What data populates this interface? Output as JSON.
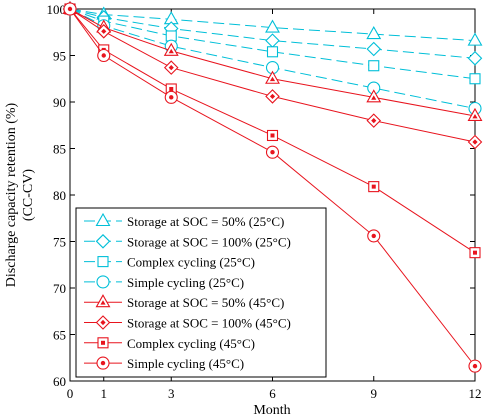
{
  "chart_data": {
    "type": "line",
    "title": "",
    "xlabel": "Month",
    "ylabel": "Discharge capacity retention (%)",
    "ylabel2": "(CC-CV)",
    "xlim": [
      0,
      12
    ],
    "ylim": [
      60,
      100
    ],
    "xticks": [
      0,
      1,
      3,
      6,
      9,
      12
    ],
    "yticks": [
      60,
      65,
      70,
      75,
      80,
      85,
      90,
      95,
      100
    ],
    "grid": false,
    "legend_position": "bottom-left",
    "x": [
      0,
      1,
      3,
      6,
      9,
      12
    ],
    "series": [
      {
        "name": "Storage at SOC = 50% (25°C)",
        "marker": "triangle",
        "filled": false,
        "color": "#00bfd8",
        "dash": true,
        "values": [
          100,
          99.4,
          98.9,
          98.0,
          97.3,
          96.6
        ]
      },
      {
        "name": "Storage at SOC = 100% (25°C)",
        "marker": "diamond",
        "filled": false,
        "color": "#00bfd8",
        "dash": true,
        "values": [
          100,
          99.1,
          97.9,
          96.6,
          95.7,
          94.7
        ]
      },
      {
        "name": "Complex cycling (25°C)",
        "marker": "square",
        "filled": false,
        "color": "#00bfd8",
        "dash": true,
        "values": [
          100,
          98.7,
          97.1,
          95.4,
          93.9,
          92.5
        ]
      },
      {
        "name": "Simple cycling (25°C)",
        "marker": "circle",
        "filled": false,
        "color": "#00bfd8",
        "dash": true,
        "values": [
          100,
          98.2,
          96.0,
          93.7,
          91.5,
          89.3
        ]
      },
      {
        "name": "Storage at SOC = 50% (45°C)",
        "marker": "triangle",
        "filled": true,
        "color": "#e8141e",
        "dash": false,
        "values": [
          100,
          98.0,
          95.5,
          92.5,
          90.5,
          88.5
        ]
      },
      {
        "name": "Storage at SOC = 100% (45°C)",
        "marker": "diamond",
        "filled": true,
        "color": "#e8141e",
        "dash": false,
        "values": [
          100,
          97.6,
          93.7,
          90.6,
          88.0,
          85.7
        ]
      },
      {
        "name": "Complex cycling (45°C)",
        "marker": "square",
        "filled": true,
        "color": "#e8141e",
        "dash": false,
        "values": [
          100,
          95.6,
          91.4,
          86.4,
          80.9,
          73.8
        ]
      },
      {
        "name": "Simple cycling (45°C)",
        "marker": "circle",
        "filled": true,
        "color": "#e8141e",
        "dash": false,
        "values": [
          100,
          95.0,
          90.5,
          84.6,
          75.6,
          61.6
        ]
      }
    ]
  }
}
